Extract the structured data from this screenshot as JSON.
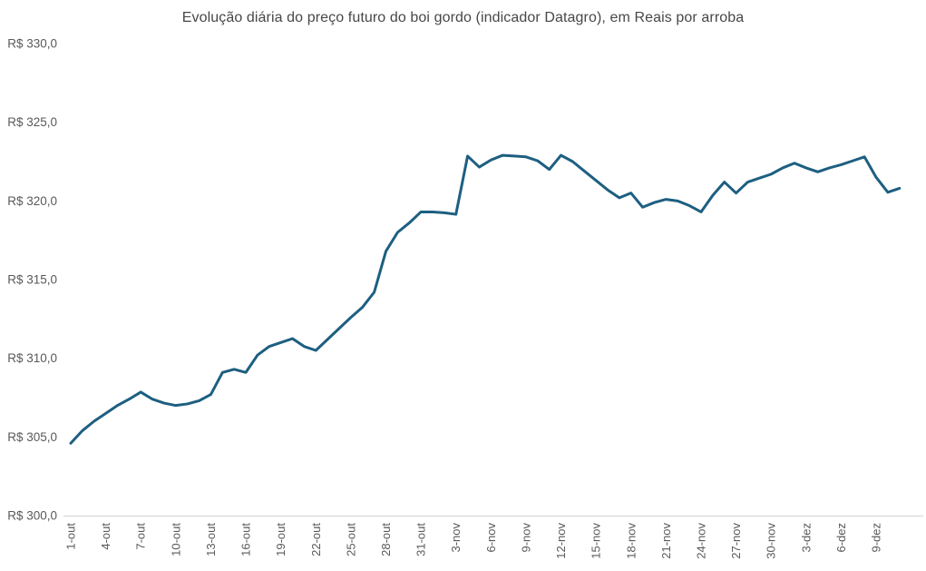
{
  "chart_data": {
    "type": "line",
    "title": "Evolução diária do preço futuro do boi gordo (indicador Datagro), em Reais por arroba",
    "currency_prefix": "R$",
    "y_axis": {
      "tick_labels": [
        "R$ 300,0",
        "R$ 305,0",
        "R$ 310,0",
        "R$ 315,0",
        "R$ 320,0",
        "R$ 325,0",
        "R$ 330,0"
      ],
      "tick_values": [
        300,
        305,
        310,
        315,
        320,
        325,
        330
      ],
      "min": 300,
      "max": 330
    },
    "x_axis": {
      "tick_labels": [
        "1-out",
        "4-out",
        "7-out",
        "10-out",
        "13-out",
        "16-out",
        "19-out",
        "22-out",
        "25-out",
        "28-out",
        "31-out",
        "3-nov",
        "6-nov",
        "9-nov",
        "12-nov",
        "15-nov",
        "18-nov",
        "21-nov",
        "24-nov",
        "27-nov",
        "30-nov",
        "3-dez",
        "6-dez",
        "9-dez"
      ],
      "tick_interval_days": 3
    },
    "categories": [
      "1-out",
      "2-out",
      "3-out",
      "4-out",
      "5-out",
      "6-out",
      "7-out",
      "8-out",
      "9-out",
      "10-out",
      "11-out",
      "12-out",
      "13-out",
      "14-out",
      "15-out",
      "16-out",
      "17-out",
      "18-out",
      "19-out",
      "20-out",
      "21-out",
      "22-out",
      "23-out",
      "24-out",
      "25-out",
      "26-out",
      "27-out",
      "28-out",
      "29-out",
      "30-out",
      "31-out",
      "1-nov",
      "2-nov",
      "3-nov",
      "4-nov",
      "5-nov",
      "6-nov",
      "7-nov",
      "8-nov",
      "9-nov",
      "10-nov",
      "11-nov",
      "12-nov",
      "13-nov",
      "14-nov",
      "15-nov",
      "16-nov",
      "17-nov",
      "18-nov",
      "19-nov",
      "20-nov",
      "21-nov",
      "22-nov",
      "23-nov",
      "24-nov",
      "25-nov",
      "26-nov",
      "27-nov",
      "28-nov",
      "29-nov",
      "30-nov",
      "1-dez",
      "2-dez",
      "3-dez",
      "4-dez",
      "5-dez",
      "6-dez",
      "7-dez",
      "8-dez",
      "9-dez",
      "10-dez",
      "11-dez"
    ],
    "values": [
      304.6,
      305.4,
      306.0,
      306.5,
      307.0,
      307.4,
      307.85,
      307.4,
      307.15,
      307.0,
      307.1,
      307.3,
      307.7,
      309.1,
      309.3,
      309.1,
      310.2,
      310.75,
      311.0,
      311.25,
      310.75,
      310.5,
      311.2,
      311.9,
      312.6,
      313.25,
      314.2,
      316.8,
      318.0,
      318.6,
      319.3,
      319.3,
      319.25,
      319.15,
      322.85,
      322.15,
      322.6,
      322.9,
      322.85,
      322.8,
      322.55,
      322.0,
      322.9,
      322.5,
      321.9,
      321.3,
      320.7,
      320.2,
      320.5,
      319.6,
      319.9,
      320.1,
      320.0,
      319.7,
      319.3,
      320.35,
      321.2,
      320.5,
      321.2,
      321.45,
      321.7,
      322.1,
      322.4,
      322.1,
      321.85,
      322.1,
      322.3,
      322.55,
      322.8,
      321.5,
      320.55,
      320.8
    ],
    "style": {
      "line_color": "#1d5f81",
      "axis_line_color": "#d9d9d9",
      "label_color": "#595959",
      "title_color": "#474747",
      "background": "#ffffff",
      "grid": false,
      "legend": "none"
    }
  }
}
